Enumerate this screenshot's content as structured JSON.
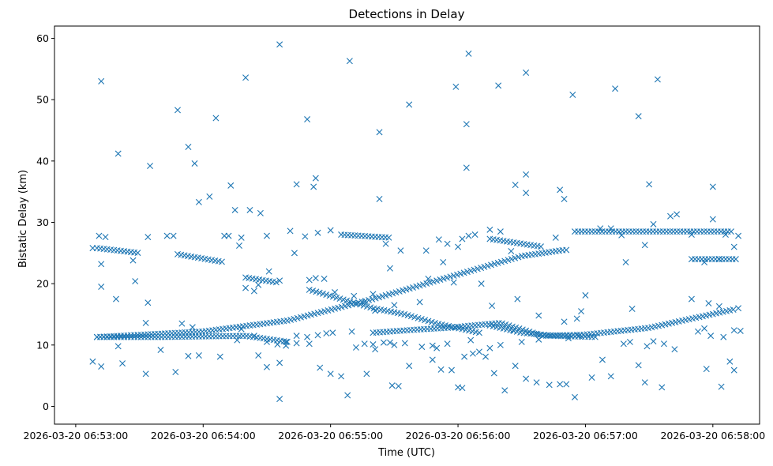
{
  "chart_data": {
    "type": "scatter",
    "title": "Detections in Delay",
    "xlabel": "Time (UTC)",
    "ylabel": "Bistatic Delay (km)",
    "marker": "x",
    "color": "#1f77b4",
    "grid": false,
    "x_unit": "seconds after 06:53:00 UTC, 2026-03-20",
    "xlim": [
      -10,
      322
    ],
    "ylim": [
      -2.9,
      62
    ],
    "xticks": [
      {
        "value": 0,
        "label": "2026-03-20 06:53:00"
      },
      {
        "value": 60,
        "label": "2026-03-20 06:54:00"
      },
      {
        "value": 120,
        "label": "2026-03-20 06:55:00"
      },
      {
        "value": 180,
        "label": "2026-03-20 06:56:00"
      },
      {
        "value": 240,
        "label": "2026-03-20 06:57:00"
      },
      {
        "value": 300,
        "label": "2026-03-20 06:58:00"
      }
    ],
    "yticks": [
      0,
      10,
      20,
      30,
      40,
      50,
      60
    ],
    "tracks": [
      {
        "x": [
          10,
          60,
          100,
          140,
          180,
          210,
          230
        ],
        "y": [
          11.3,
          12.2,
          14.0,
          17.5,
          21.5,
          24.5,
          25.5
        ]
      },
      {
        "x": [
          140,
          160,
          175,
          200,
          220,
          240,
          270,
          310
        ],
        "y": [
          12.0,
          12.5,
          12.8,
          13.6,
          11.5,
          11.7,
          12.8,
          15.8
        ]
      },
      {
        "x": [
          110,
          140,
          155,
          170,
          190
        ],
        "y": [
          19.0,
          16.0,
          15.0,
          13.5,
          12.0
        ]
      },
      {
        "x": [
          10,
          40,
          80,
          100
        ],
        "y": [
          11.3,
          11.3,
          11.5,
          10.5
        ]
      },
      {
        "x": [
          195,
          210,
          225,
          245
        ],
        "y": [
          13.2,
          12.0,
          11.5,
          11.3
        ]
      },
      {
        "x": [
          10,
          30
        ],
        "y": [
          25.8,
          25.0
        ]
      },
      {
        "x": [
          48,
          70
        ],
        "y": [
          24.8,
          23.5
        ]
      },
      {
        "x": [
          80,
          95
        ],
        "y": [
          21.0,
          20.2
        ]
      },
      {
        "x": [
          125,
          148
        ],
        "y": [
          28.0,
          27.5
        ]
      },
      {
        "x": [
          195,
          220
        ],
        "y": [
          27.3,
          26.0
        ]
      },
      {
        "x": [
          235,
          310
        ],
        "y": [
          28.5,
          28.5
        ]
      },
      {
        "x": [
          290,
          312
        ],
        "y": [
          24.0,
          24.0
        ]
      }
    ],
    "points": [
      [
        12,
        53
      ],
      [
        20,
        41.2
      ],
      [
        35,
        39.2
      ],
      [
        48,
        48.3
      ],
      [
        53,
        42.3
      ],
      [
        56,
        39.6
      ],
      [
        58,
        33.3
      ],
      [
        63,
        34.2
      ],
      [
        66,
        47
      ],
      [
        80,
        53.6
      ],
      [
        96,
        59
      ],
      [
        104,
        36.2
      ],
      [
        109,
        46.8
      ],
      [
        113,
        37.2
      ],
      [
        112,
        35.8
      ],
      [
        129,
        56.3
      ],
      [
        143,
        44.7
      ],
      [
        143,
        33.8
      ],
      [
        157,
        49.2
      ],
      [
        179,
        52.1
      ],
      [
        185,
        57.5
      ],
      [
        184,
        46
      ],
      [
        184,
        38.9
      ],
      [
        199,
        52.3
      ],
      [
        212,
        54.4
      ],
      [
        228,
        35.3
      ],
      [
        230,
        33.8
      ],
      [
        207,
        36.1
      ],
      [
        212,
        34.8
      ],
      [
        212,
        37.8
      ],
      [
        234,
        50.8
      ],
      [
        254,
        51.8
      ],
      [
        265,
        47.3
      ],
      [
        270,
        36.2
      ],
      [
        274,
        53.3
      ],
      [
        300,
        35.8
      ],
      [
        11,
        27.8
      ],
      [
        14,
        27.6
      ],
      [
        8,
        25.8
      ],
      [
        12,
        23.2
      ],
      [
        27,
        23.8
      ],
      [
        34,
        27.6
      ],
      [
        46,
        27.8
      ],
      [
        43,
        27.8
      ],
      [
        70,
        27.8
      ],
      [
        72,
        27.8
      ],
      [
        77,
        26.2
      ],
      [
        78,
        27.5
      ],
      [
        73,
        36
      ],
      [
        75,
        32
      ],
      [
        82,
        32
      ],
      [
        87,
        31.5
      ],
      [
        90,
        27.8
      ],
      [
        101,
        28.6
      ],
      [
        108,
        27.7
      ],
      [
        114,
        28.3
      ],
      [
        120,
        28.7
      ],
      [
        146,
        26.5
      ],
      [
        148,
        22.5
      ],
      [
        153,
        25.4
      ],
      [
        165,
        25.4
      ],
      [
        171,
        27.2
      ],
      [
        175,
        26.5
      ],
      [
        173,
        23.5
      ],
      [
        180,
        26
      ],
      [
        182,
        27.3
      ],
      [
        185,
        27.8
      ],
      [
        188,
        28
      ],
      [
        195,
        28.8
      ],
      [
        200,
        28.5
      ],
      [
        205,
        25.3
      ],
      [
        226,
        27.5
      ],
      [
        231,
        25.5
      ],
      [
        247,
        29
      ],
      [
        252,
        29
      ],
      [
        257,
        27.9
      ],
      [
        259,
        23.5
      ],
      [
        268,
        26.3
      ],
      [
        272,
        29.7
      ],
      [
        280,
        31
      ],
      [
        283,
        31.3
      ],
      [
        290,
        28
      ],
      [
        300,
        30.5
      ],
      [
        303,
        24
      ],
      [
        312,
        27.8
      ],
      [
        296,
        23.5
      ],
      [
        306,
        28
      ],
      [
        310,
        26
      ],
      [
        12,
        19.5
      ],
      [
        19,
        17.5
      ],
      [
        28,
        20.4
      ],
      [
        34,
        16.9
      ],
      [
        80,
        19.3
      ],
      [
        84,
        18.8
      ],
      [
        86,
        19.8
      ],
      [
        91,
        22
      ],
      [
        96,
        20.5
      ],
      [
        103,
        25
      ],
      [
        110,
        20.6
      ],
      [
        113,
        20.9
      ],
      [
        117,
        20.8
      ],
      [
        122,
        18.6
      ],
      [
        131,
        18
      ],
      [
        136,
        17
      ],
      [
        140,
        18.3
      ],
      [
        141,
        15.6
      ],
      [
        150,
        16.5
      ],
      [
        162,
        17
      ],
      [
        166,
        20.8
      ],
      [
        178,
        20.2
      ],
      [
        191,
        20
      ],
      [
        196,
        16.4
      ],
      [
        208,
        17.5
      ],
      [
        218,
        14.8
      ],
      [
        230,
        13.8
      ],
      [
        236,
        14.3
      ],
      [
        238,
        15.5
      ],
      [
        240,
        18.1
      ],
      [
        262,
        15.9
      ],
      [
        290,
        17.5
      ],
      [
        298,
        16.8
      ],
      [
        303,
        16.3
      ],
      [
        312,
        16
      ],
      [
        33,
        13.6
      ],
      [
        50,
        13.5
      ],
      [
        55,
        12.9
      ],
      [
        78,
        12.6
      ],
      [
        84,
        11.5
      ],
      [
        90,
        10.5
      ],
      [
        95,
        10.1
      ],
      [
        99,
        10.5
      ],
      [
        104,
        10.3
      ],
      [
        109,
        11.3
      ],
      [
        114,
        11.6
      ],
      [
        118,
        11.9
      ],
      [
        121,
        12
      ],
      [
        130,
        12.2
      ],
      [
        136,
        10.2
      ],
      [
        141,
        9.3
      ],
      [
        145,
        10.4
      ],
      [
        150,
        10
      ],
      [
        155,
        10.3
      ],
      [
        168,
        9.9
      ],
      [
        170,
        9.5
      ],
      [
        175,
        10.2
      ],
      [
        183,
        8.1
      ],
      [
        186,
        10.8
      ],
      [
        190,
        8.9
      ],
      [
        195,
        9.5
      ],
      [
        200,
        10
      ],
      [
        206,
        12.4
      ],
      [
        210,
        10.5
      ],
      [
        218,
        10.9
      ],
      [
        232,
        11.1
      ],
      [
        237,
        11.5
      ],
      [
        258,
        10.2
      ],
      [
        261,
        10.5
      ],
      [
        269,
        9.8
      ],
      [
        272,
        10.6
      ],
      [
        277,
        10.2
      ],
      [
        293,
        12.2
      ],
      [
        296,
        12.7
      ],
      [
        299,
        11.5
      ],
      [
        305,
        11.3
      ],
      [
        310,
        12.4
      ],
      [
        313,
        12.3
      ],
      [
        8,
        7.3
      ],
      [
        12,
        6.5
      ],
      [
        20,
        9.8
      ],
      [
        22,
        7
      ],
      [
        33,
        5.3
      ],
      [
        40,
        9.2
      ],
      [
        47,
        5.6
      ],
      [
        53,
        8.2
      ],
      [
        58,
        8.3
      ],
      [
        68,
        8.1
      ],
      [
        76,
        10.8
      ],
      [
        86,
        8.3
      ],
      [
        90,
        6.4
      ],
      [
        96,
        7.1
      ],
      [
        99,
        9.9
      ],
      [
        104,
        11.5
      ],
      [
        110,
        10.2
      ],
      [
        115,
        6.3
      ],
      [
        120,
        5.3
      ],
      [
        125,
        4.9
      ],
      [
        132,
        9.6
      ],
      [
        137,
        5.3
      ],
      [
        140,
        10.1
      ],
      [
        148,
        10.4
      ],
      [
        152,
        3.3
      ],
      [
        157,
        6.6
      ],
      [
        163,
        9.7
      ],
      [
        168,
        7.6
      ],
      [
        172,
        6
      ],
      [
        177,
        5.9
      ],
      [
        180,
        3.1
      ],
      [
        187,
        8.6
      ],
      [
        193,
        8.1
      ],
      [
        197,
        5.4
      ],
      [
        202,
        2.6
      ],
      [
        207,
        6.6
      ],
      [
        212,
        4.5
      ],
      [
        217,
        3.9
      ],
      [
        223,
        3.5
      ],
      [
        228,
        3.6
      ],
      [
        231,
        3.6
      ],
      [
        235,
        1.5
      ],
      [
        243,
        4.7
      ],
      [
        248,
        7.6
      ],
      [
        252,
        4.9
      ],
      [
        265,
        6.7
      ],
      [
        268,
        3.9
      ],
      [
        276,
        3.1
      ],
      [
        282,
        9.3
      ],
      [
        297,
        6.1
      ],
      [
        304,
        3.2
      ],
      [
        308,
        7.3
      ],
      [
        310,
        5.9
      ],
      [
        96,
        1.2
      ],
      [
        128,
        1.8
      ],
      [
        149,
        3.4
      ],
      [
        182,
        3
      ]
    ]
  }
}
